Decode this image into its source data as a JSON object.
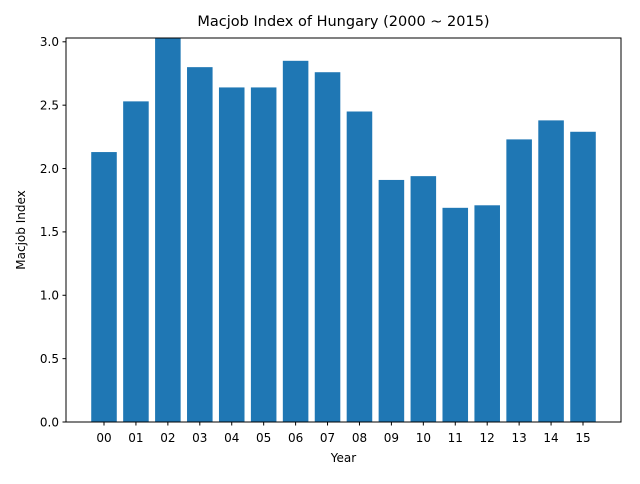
{
  "chart_data": {
    "type": "bar",
    "title": "Macjob Index of Hungary (2000 ~ 2015)",
    "xlabel": "Year",
    "ylabel": "Macjob Index",
    "categories": [
      "00",
      "01",
      "02",
      "03",
      "04",
      "05",
      "06",
      "07",
      "08",
      "09",
      "10",
      "11",
      "12",
      "13",
      "14",
      "15"
    ],
    "values": [
      2.13,
      2.53,
      3.04,
      2.8,
      2.64,
      2.64,
      2.85,
      2.76,
      2.45,
      1.91,
      1.94,
      1.69,
      1.71,
      2.23,
      2.38,
      2.29
    ],
    "ylim": [
      0,
      3.03
    ],
    "yticks": [
      0.0,
      0.5,
      1.0,
      1.5,
      2.0,
      2.5,
      3.0
    ],
    "ytick_labels": [
      "0.0",
      "0.5",
      "1.0",
      "1.5",
      "2.0",
      "2.5",
      "3.0"
    ],
    "bar_color": "#1f77b4",
    "grid": false,
    "legend": "none"
  }
}
